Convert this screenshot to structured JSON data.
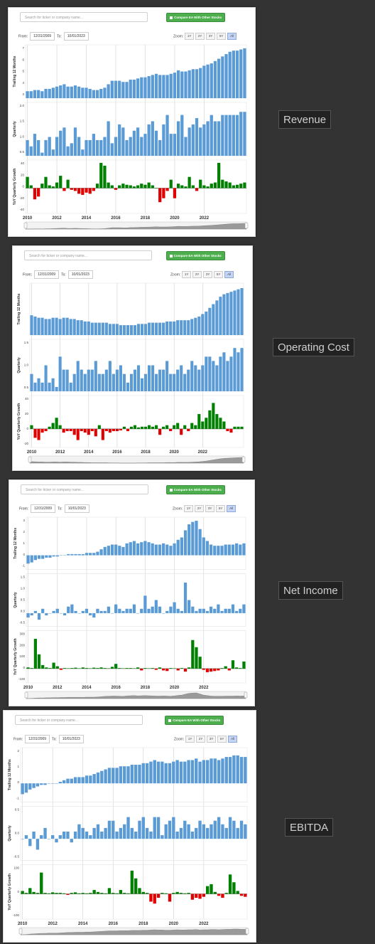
{
  "ui": {
    "search_placeholder": "Search for ticker or company name...",
    "compare_label": "Compare EA With Other Stocks",
    "from_label": "From:",
    "to_label": "To:",
    "from_date": "12/31/2009",
    "to_date": "10/01/2023",
    "zoom_label": "Zoom:",
    "zoom_buttons": [
      "1Y",
      "2Y",
      "3Y",
      "5Y",
      "All"
    ],
    "active_zoom": "All"
  },
  "colors": {
    "positive": "#008000",
    "negative": "#e00000",
    "bar": "#5b9bd5",
    "background": "#333333"
  },
  "chart_data": [
    {
      "type": "bar",
      "title": "Revenue",
      "x_tick_labels": [
        "2010",
        "2012",
        "2014",
        "2016",
        "2018",
        "2020",
        "2022"
      ],
      "panels": [
        {
          "ylabel": "Trailing 12 Months",
          "ticks": [
            "7",
            "6",
            "5",
            "4",
            "3"
          ],
          "ylim": [
            3,
            7.6
          ],
          "values": [
            3.6,
            3.6,
            3.7,
            3.7,
            3.6,
            3.8,
            3.8,
            3.9,
            4.0,
            4.1,
            4.2,
            4.0,
            4.0,
            4.1,
            4.0,
            3.9,
            3.9,
            3.8,
            3.7,
            3.7,
            3.8,
            3.9,
            4.2,
            4.5,
            4.5,
            4.5,
            4.4,
            4.4,
            4.6,
            4.6,
            4.7,
            4.8,
            4.8,
            4.9,
            5.0,
            5.1,
            5.0,
            5.0,
            5.0,
            5.1,
            5.2,
            5.4,
            5.3,
            5.3,
            5.4,
            5.5,
            5.5,
            5.6,
            5.8,
            5.9,
            6.0,
            6.2,
            6.4,
            6.6,
            6.8,
            7.0,
            7.1,
            7.1,
            7.2,
            7.3
          ]
        },
        {
          "ylabel": "Quarterly",
          "ticks": [
            "2.0",
            "1.5",
            "1.0",
            "0.5"
          ],
          "ylim": [
            0.5,
            2.2
          ],
          "values": [
            1.0,
            0.8,
            1.2,
            1.0,
            0.6,
            1.0,
            1.1,
            0.7,
            1.1,
            1.3,
            1.4,
            0.8,
            0.9,
            1.4,
            1.1,
            0.7,
            1.0,
            1.0,
            1.2,
            1.0,
            1.0,
            1.1,
            1.6,
            0.9,
            1.1,
            1.5,
            1.4,
            1.0,
            1.1,
            1.3,
            1.4,
            1.1,
            1.2,
            1.5,
            1.6,
            1.3,
            1.0,
            1.5,
            1.8,
            1.2,
            1.2,
            1.6,
            1.8,
            1.1,
            1.4,
            1.5,
            1.7,
            1.4,
            1.5,
            1.6,
            1.8,
            1.6,
            1.6,
            1.8,
            1.8,
            1.8,
            1.8,
            1.8,
            1.9,
            1.9
          ]
        },
        {
          "ylabel": "YoY Quarterly Growth",
          "ticks": [
            "40",
            "20",
            "0",
            "-20",
            "-40"
          ],
          "ylim": [
            -45,
            50
          ],
          "values": [
            20,
            5,
            -20,
            -15,
            8,
            20,
            5,
            3,
            10,
            22,
            -5,
            15,
            -3,
            -5,
            -10,
            -12,
            -8,
            -10,
            -5,
            8,
            45,
            40,
            10,
            5,
            -3,
            5,
            8,
            6,
            5,
            3,
            5,
            8,
            6,
            10,
            5,
            0,
            -25,
            -18,
            -5,
            15,
            -18,
            8,
            5,
            3,
            20,
            5,
            -5,
            15,
            5,
            3,
            8,
            10,
            45,
            15,
            12,
            10,
            5,
            6,
            8,
            10
          ]
        }
      ]
    },
    {
      "type": "bar",
      "title": "Operating Cost",
      "x_tick_labels": [
        "2010",
        "2012",
        "2014",
        "2016",
        "2018",
        "2020",
        "2022"
      ],
      "panels": [
        {
          "ylabel": "Trailing 12 Months",
          "ticks": [],
          "ylim": [
            2,
            6.2
          ],
          "values": [
            3.6,
            3.5,
            3.4,
            3.4,
            3.3,
            3.3,
            3.4,
            3.4,
            3.3,
            3.4,
            3.4,
            3.3,
            3.3,
            3.2,
            3.2,
            3.1,
            3.1,
            3.0,
            3.0,
            3.0,
            3.0,
            3.0,
            2.9,
            2.9,
            2.9,
            2.8,
            2.8,
            2.8,
            2.8,
            2.8,
            2.9,
            2.9,
            2.9,
            3.0,
            3.0,
            3.0,
            3.0,
            3.0,
            3.1,
            3.1,
            3.1,
            3.2,
            3.2,
            3.2,
            3.2,
            3.3,
            3.4,
            3.5,
            3.7,
            3.9,
            4.2,
            4.5,
            4.8,
            5.1,
            5.3,
            5.4,
            5.5,
            5.6,
            5.7,
            5.8
          ]
        },
        {
          "ylabel": "Quarterly",
          "ticks": [
            "1.5",
            "1.0",
            "0.5"
          ],
          "ylim": [
            0.5,
            1.7
          ],
          "values": [
            0.9,
            0.7,
            0.8,
            0.7,
            1.1,
            0.7,
            0.8,
            0.6,
            1.3,
            1.0,
            1.0,
            0.7,
            0.9,
            1.2,
            1.0,
            0.9,
            1.0,
            1.0,
            1.2,
            0.9,
            0.9,
            1.0,
            1.2,
            0.9,
            1.0,
            1.1,
            0.9,
            0.7,
            0.9,
            1.0,
            1.1,
            0.8,
            0.9,
            1.1,
            1.1,
            0.9,
            1.0,
            1.0,
            1.2,
            0.9,
            0.9,
            1.0,
            1.1,
            0.9,
            1.0,
            1.2,
            1.1,
            1.0,
            1.1,
            1.3,
            1.3,
            1.2,
            1.1,
            1.3,
            1.4,
            1.2,
            1.3,
            1.5,
            1.4,
            1.5
          ]
        },
        {
          "ylabel": "YoY Quarterly Growth",
          "ticks": [
            "40",
            "20",
            "0",
            "-20"
          ],
          "ylim": [
            -25,
            45
          ],
          "values": [
            5,
            -12,
            -15,
            -5,
            -3,
            3,
            8,
            15,
            5,
            -5,
            -3,
            -3,
            -8,
            -15,
            -3,
            -5,
            -8,
            -3,
            -10,
            5,
            -15,
            -3,
            -5,
            -3,
            -3,
            -2,
            3,
            -3,
            3,
            5,
            2,
            3,
            3,
            5,
            3,
            5,
            -8,
            3,
            5,
            -3,
            5,
            8,
            -8,
            5,
            -3,
            8,
            5,
            20,
            10,
            15,
            25,
            35,
            20,
            15,
            10,
            -3,
            -5,
            3,
            3,
            3
          ]
        }
      ]
    },
    {
      "type": "bar",
      "title": "Net Income",
      "x_tick_labels": [
        "2010",
        "2012",
        "2014",
        "2016",
        "2018",
        "2020",
        "2022"
      ],
      "panels": [
        {
          "ylabel": "Trailing 12 Months",
          "ticks": [
            "3",
            "2",
            "1",
            "0",
            "-1"
          ],
          "ylim": [
            -1.2,
            3.2
          ],
          "values": [
            -0.7,
            -0.6,
            -0.4,
            -0.3,
            -0.3,
            -0.2,
            -0.2,
            -0.1,
            -0.1,
            0.0,
            0.0,
            0.1,
            0.1,
            0.1,
            0.1,
            0.1,
            0.2,
            0.2,
            0.2,
            0.3,
            0.5,
            0.7,
            0.8,
            0.9,
            0.9,
            0.8,
            0.7,
            1.0,
            1.1,
            1.2,
            1.0,
            1.1,
            1.2,
            1.1,
            1.0,
            0.9,
            0.9,
            1.0,
            0.9,
            0.8,
            1.0,
            1.3,
            1.5,
            2.1,
            2.6,
            2.8,
            2.9,
            2.2,
            1.5,
            1.2,
            0.9,
            0.8,
            0.8,
            0.8,
            0.9,
            0.9,
            0.9,
            1.0,
            0.9,
            1.0
          ]
        },
        {
          "ylabel": "Quarterly",
          "ticks": [
            "1.5",
            "1.0",
            "0.5",
            "0.0",
            "-0.5"
          ],
          "ylim": [
            -0.6,
            1.8
          ],
          "values": [
            -0.2,
            -0.1,
            0.1,
            -0.3,
            0.2,
            -0.1,
            0.0,
            0.1,
            0.2,
            0.0,
            -0.1,
            0.3,
            0.4,
            0.1,
            0.0,
            0.1,
            0.2,
            -0.1,
            -0.2,
            0.2,
            0.1,
            0.1,
            0.3,
            0.0,
            0.4,
            0.2,
            0.1,
            0.2,
            0.2,
            0.4,
            0.0,
            0.2,
            0.8,
            0.2,
            0.3,
            0.6,
            0.3,
            0.0,
            0.1,
            0.3,
            0.5,
            0.2,
            0.1,
            1.4,
            0.6,
            0.3,
            0.1,
            0.2,
            0.2,
            0.1,
            0.3,
            0.2,
            0.4,
            0.1,
            0.2,
            0.2,
            0.4,
            0.1,
            0.2,
            0.4
          ]
        },
        {
          "ylabel": "YoY Quarterly Growth",
          "ticks": [
            "300",
            "200",
            "100",
            "0",
            "-100"
          ],
          "ylim": [
            -120,
            320
          ],
          "values": [
            10,
            5,
            250,
            120,
            30,
            10,
            5,
            50,
            20,
            -10,
            5,
            3,
            5,
            8,
            3,
            10,
            5,
            3,
            8,
            5,
            10,
            5,
            3,
            15,
            40,
            5,
            3,
            5,
            5,
            3,
            10,
            -15,
            5,
            3,
            5,
            -10,
            10,
            -15,
            -20,
            5,
            3,
            -15,
            5,
            -25,
            10,
            240,
            180,
            100,
            -10,
            -30,
            -25,
            -20,
            -15,
            5,
            20,
            -15,
            70,
            10,
            5,
            60
          ]
        }
      ]
    },
    {
      "type": "bar",
      "title": "EBITDA",
      "x_tick_labels": [
        "2010",
        "2012",
        "2014",
        "2016",
        "2018",
        "2020",
        "2022"
      ],
      "panels": [
        {
          "ylabel": "Trailing 12 Months",
          "ticks": [
            "2",
            "1",
            "0",
            "-1"
          ],
          "ylim": [
            -1.2,
            2.3
          ],
          "values": [
            -0.7,
            -0.6,
            -0.4,
            -0.3,
            -0.2,
            -0.1,
            -0.1,
            0.0,
            0.0,
            0.0,
            0.1,
            0.2,
            0.3,
            0.3,
            0.4,
            0.4,
            0.4,
            0.5,
            0.5,
            0.6,
            0.7,
            0.8,
            0.9,
            1.0,
            1.0,
            1.0,
            1.1,
            1.1,
            1.1,
            1.2,
            1.2,
            1.2,
            1.3,
            1.3,
            1.4,
            1.5,
            1.4,
            1.4,
            1.3,
            1.3,
            1.4,
            1.5,
            1.4,
            1.4,
            1.5,
            1.5,
            1.6,
            1.4,
            1.5,
            1.5,
            1.6,
            1.6,
            1.5,
            1.6,
            1.7,
            1.7,
            1.8,
            1.8,
            1.7,
            1.7
          ]
        },
        {
          "ylabel": "Quarterly",
          "ticks": [
            "0.5",
            "0.0",
            "-0.5"
          ],
          "ylim": [
            -0.6,
            0.9
          ],
          "values": [
            0.0,
            0.1,
            -0.2,
            0.2,
            -0.3,
            0.1,
            0.3,
            0.0,
            0.1,
            -0.1,
            0.1,
            0.2,
            0.2,
            -0.1,
            0.2,
            0.4,
            0.3,
            0.2,
            0.1,
            0.3,
            0.4,
            0.2,
            0.3,
            0.5,
            0.5,
            0.2,
            0.3,
            0.4,
            0.6,
            0.3,
            0.2,
            0.5,
            0.6,
            0.3,
            0.2,
            0.6,
            0.6,
            0.1,
            0.4,
            0.5,
            0.6,
            0.2,
            0.3,
            0.5,
            0.4,
            0.2,
            0.3,
            0.5,
            0.4,
            0.3,
            0.4,
            0.5,
            0.6,
            0.4,
            0.3,
            0.6,
            0.5,
            0.3,
            0.5,
            0.4
          ]
        },
        {
          "ylabel": "YoY Quarterly Growth",
          "ticks": [
            "100",
            "0",
            "-100"
          ],
          "ylim": [
            -130,
            150
          ],
          "values": [
            15,
            5,
            30,
            10,
            5,
            110,
            5,
            3,
            8,
            5,
            5,
            3,
            -5,
            5,
            8,
            3,
            5,
            3,
            5,
            20,
            10,
            5,
            3,
            30,
            5,
            3,
            20,
            5,
            3,
            120,
            80,
            30,
            10,
            5,
            -40,
            -50,
            -20,
            5,
            3,
            -40,
            5,
            10,
            5,
            3,
            5,
            -30,
            -20,
            -25,
            -15,
            40,
            50,
            10,
            -10,
            -20,
            5,
            100,
            60,
            15,
            -10,
            -15
          ]
        }
      ]
    }
  ],
  "labels": [
    "Revenue",
    "Operating Cost",
    "Net Income",
    "EBITDA"
  ]
}
